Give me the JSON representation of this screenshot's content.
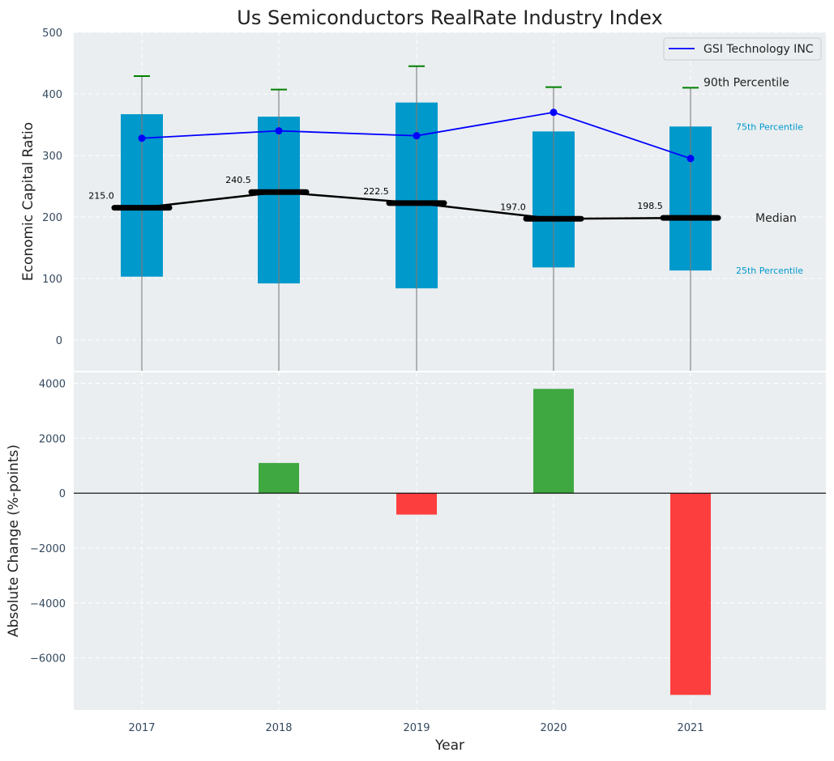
{
  "chart_data": [
    {
      "type": "box-line",
      "title": "Us Semiconductors RealRate Industry Index",
      "ylabel": "Economic Capital Ratio",
      "ylim": [
        -50,
        500
      ],
      "yticks": [
        0,
        100,
        200,
        300,
        400,
        500
      ],
      "categories": [
        "2017",
        "2018",
        "2019",
        "2020",
        "2021"
      ],
      "percentile_25": [
        103,
        92,
        84,
        118,
        113
      ],
      "percentile_75": [
        367,
        363,
        386,
        339,
        347
      ],
      "median": [
        215.0,
        240.5,
        222.5,
        197.0,
        198.5
      ],
      "median_labels": [
        "215.0",
        "240.5",
        "222.5",
        "197.0",
        "198.5"
      ],
      "percentile_90": [
        429,
        407,
        445,
        411,
        410
      ],
      "series": [
        {
          "name": "GSI Technology INC",
          "values": [
            328,
            340,
            332,
            370,
            295
          ],
          "color": "#0000ff"
        }
      ],
      "annotations": {
        "p90": "90th Percentile",
        "p75": "75th Percentile",
        "median": "Median",
        "p25": "25th Percentile"
      },
      "legend": "top-right",
      "grid": true,
      "colors": {
        "box": "#0099cc",
        "median": "#000000",
        "p90": "#008000",
        "line": "#0000ff",
        "background": "#eaeef0"
      }
    },
    {
      "type": "bar",
      "ylabel": "Absolute Change (%-points)",
      "xlabel": "Year",
      "categories": [
        "2017",
        "2018",
        "2019",
        "2020",
        "2021"
      ],
      "values": [
        0,
        1100,
        -780,
        3800,
        -7350
      ],
      "ylim": [
        -7900,
        4400
      ],
      "yticks": [
        -6000,
        -4000,
        -2000,
        0,
        2000,
        4000
      ],
      "ytick_labels": [
        "−6000",
        "−4000",
        "−2000",
        "0",
        "2000",
        "4000"
      ],
      "grid": true,
      "colors": {
        "positive": "#2ca02c",
        "negative": "#ff2a2a"
      }
    }
  ]
}
